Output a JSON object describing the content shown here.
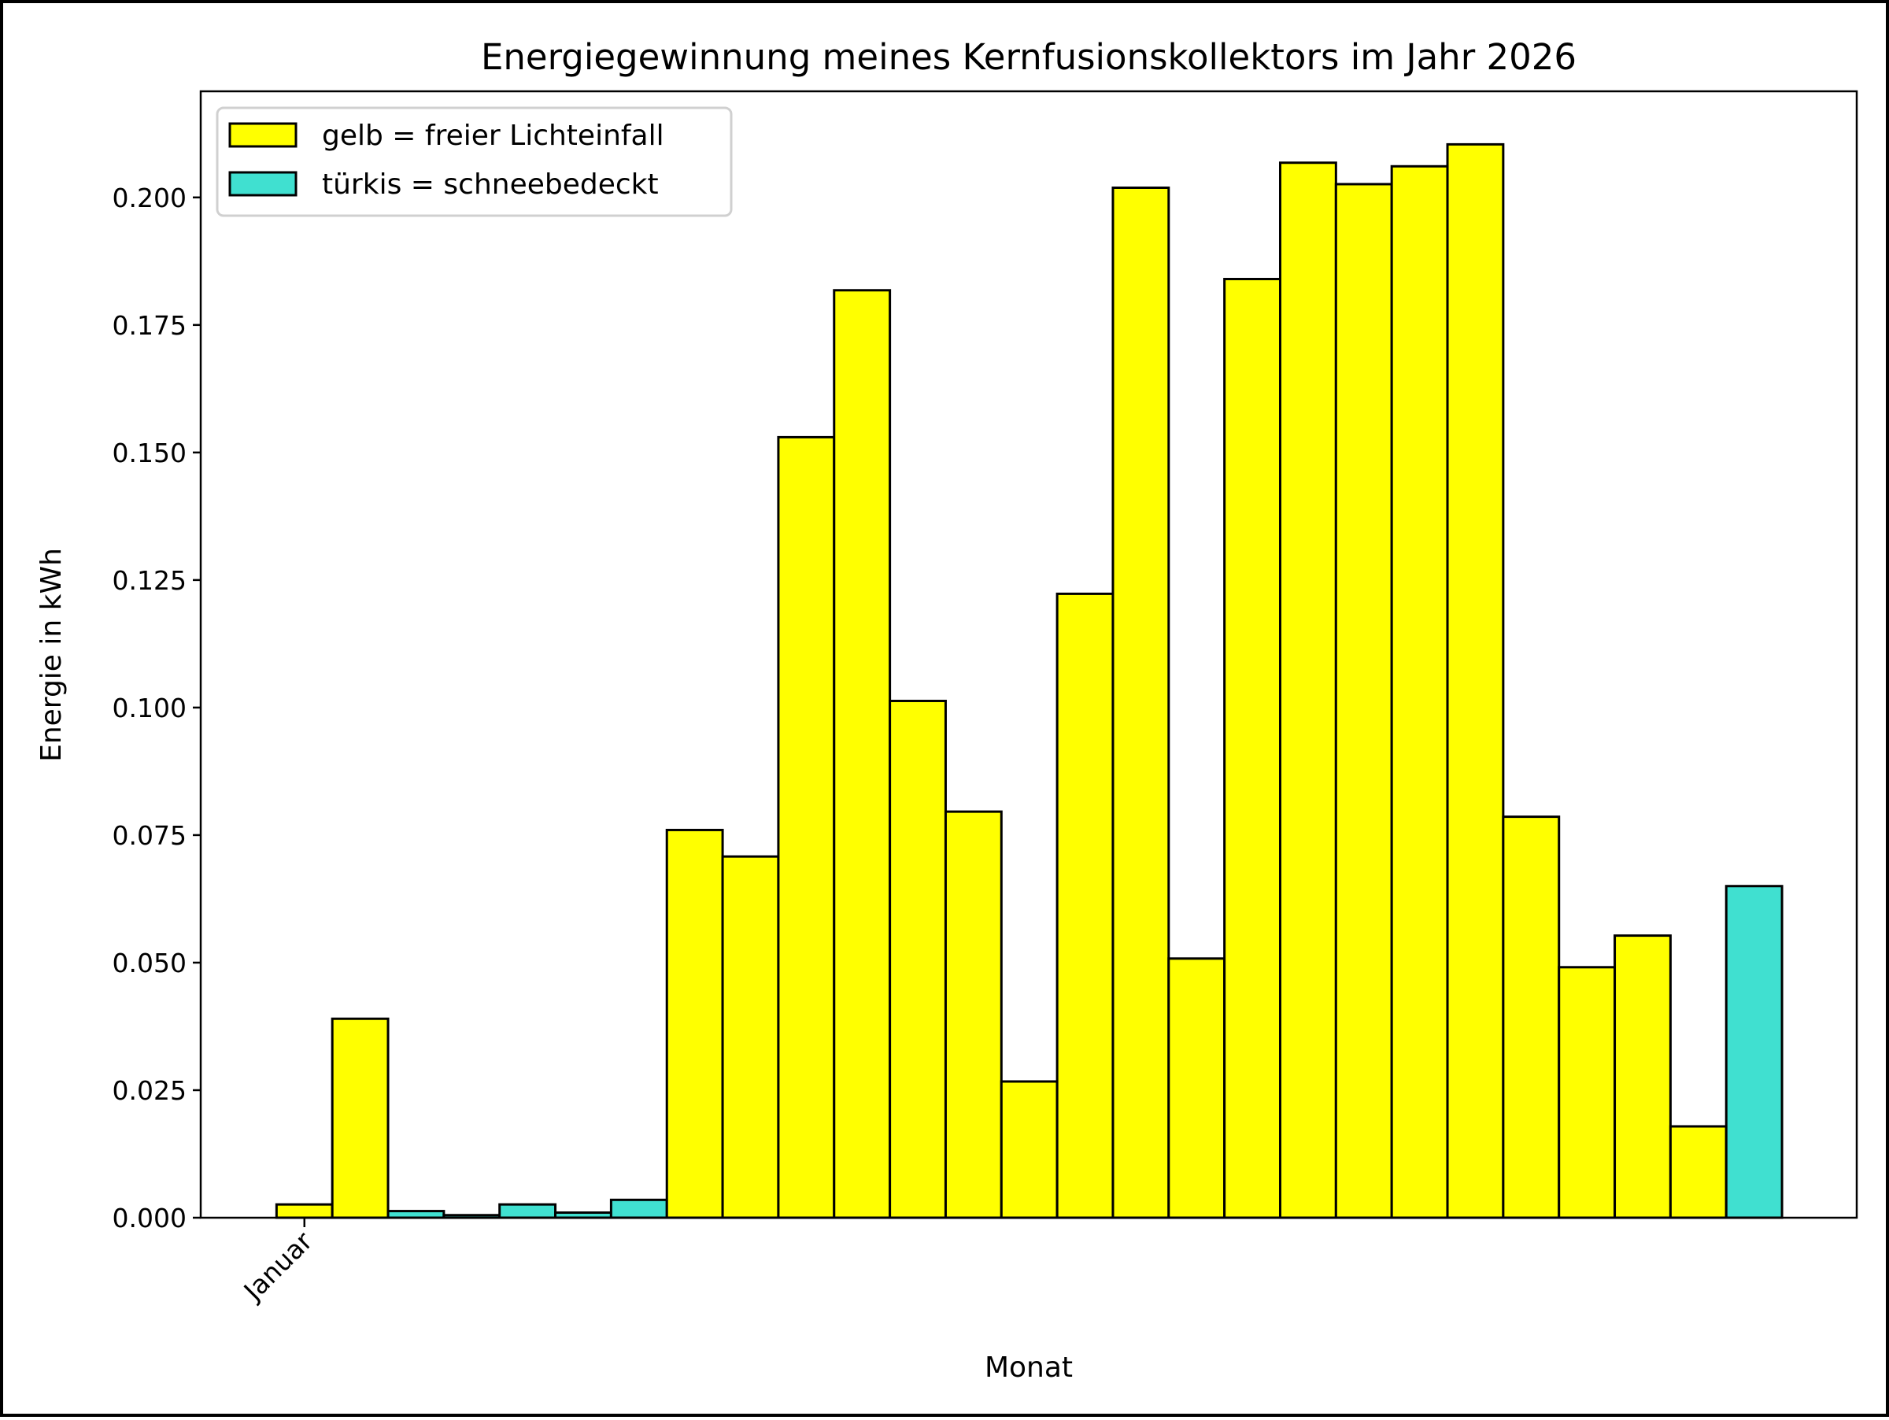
{
  "chart_data": {
    "type": "bar",
    "title": "Energiegewinnung meines Kernfusionskollektors im Jahr 2026",
    "xlabel": "Monat",
    "ylabel": "Energie in kWh",
    "ylim": [
      0,
      0.2208
    ],
    "xlim": [
      -1.86,
      27.84
    ],
    "yticks": [
      "0.000",
      "0.025",
      "0.050",
      "0.075",
      "0.100",
      "0.125",
      "0.150",
      "0.175",
      "0.200"
    ],
    "ytick_values": [
      0,
      0.025,
      0.05,
      0.075,
      0.1,
      0.125,
      0.15,
      0.175,
      0.2
    ],
    "xticks": [
      {
        "pos": 0,
        "label": "Januar"
      }
    ],
    "grid": false,
    "legend_placement": "top-left",
    "colors": {
      "yellow": "#ffff00",
      "turquoise": "#40e0d0",
      "edge": "#000000"
    },
    "legend": [
      {
        "label": "gelb = freier Lichteinfall",
        "color": "#ffff00"
      },
      {
        "label": "türkis = schneebedeckt",
        "color": "#40e0d0"
      }
    ],
    "values": [
      0.0026,
      0.039,
      0.0013,
      0.0005,
      0.0026,
      0.001,
      0.0035,
      0.076,
      0.0708,
      0.153,
      0.1818,
      0.1013,
      0.0796,
      0.0267,
      0.1223,
      0.2019,
      0.0508,
      0.184,
      0.2068,
      0.2026,
      0.2061,
      0.2104,
      0.0786,
      0.0491,
      0.0553,
      0.0179,
      0.065
    ],
    "bar_colors": [
      "yellow",
      "yellow",
      "turquoise",
      "turquoise",
      "turquoise",
      "turquoise",
      "turquoise",
      "yellow",
      "yellow",
      "yellow",
      "yellow",
      "yellow",
      "yellow",
      "yellow",
      "yellow",
      "yellow",
      "yellow",
      "yellow",
      "yellow",
      "yellow",
      "yellow",
      "yellow",
      "yellow",
      "yellow",
      "yellow",
      "yellow",
      "turquoise"
    ]
  }
}
